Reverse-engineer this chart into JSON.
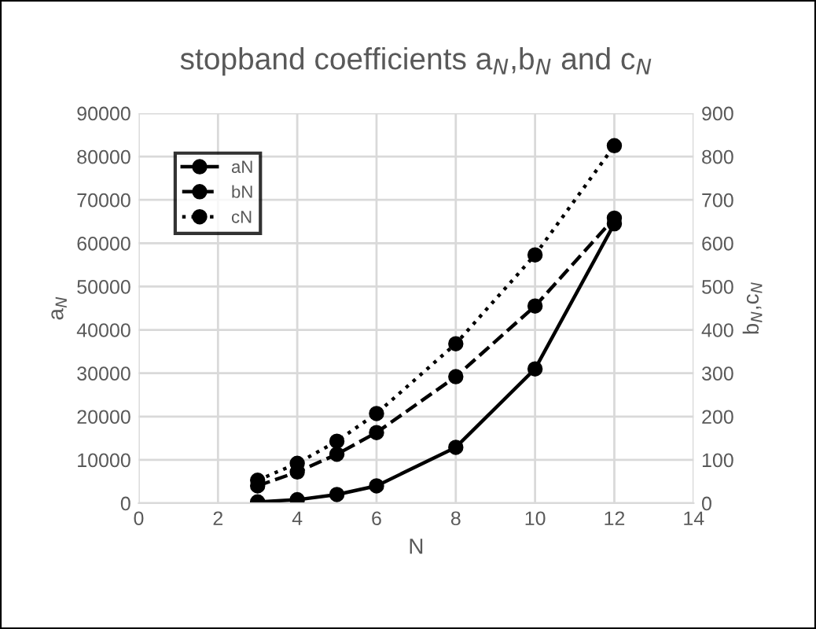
{
  "chart_data": {
    "type": "line",
    "title": "stopband coefficients a$_{N}$,b$_{N}$ and c$_{N}$",
    "xlabel": "N",
    "ylabel": "a$_{N}$",
    "y2label": "b$_{N}$,c$_{N}$",
    "x": [
      3,
      4,
      5,
      6,
      8,
      10,
      12
    ],
    "series": [
      {
        "name": "aN",
        "color": "#000000",
        "line_style": "solid",
        "values": [
          300,
          800,
          2000,
          4000,
          12900,
          31000,
          64500
        ]
      },
      {
        "name": "bN",
        "color": "#000000",
        "line_style": "dashed",
        "axis": "y2",
        "values": [
          40,
          72,
          113,
          163,
          292,
          455,
          658
        ]
      },
      {
        "name": "cN",
        "color": "#000000",
        "line_style": "dotted",
        "axis": "y2",
        "values": [
          53,
          92,
          143,
          207,
          368,
          573,
          825
        ]
      }
    ],
    "xlim": [
      0,
      14
    ],
    "xticks": [
      0,
      2,
      4,
      6,
      8,
      10,
      12,
      14
    ],
    "ylim": [
      0,
      90000
    ],
    "yticks": [
      0,
      10000,
      20000,
      30000,
      40000,
      50000,
      60000,
      70000,
      80000,
      90000
    ],
    "y2lim": [
      0,
      900
    ],
    "y2ticks": [
      0,
      100,
      200,
      300,
      400,
      500,
      600,
      700,
      800,
      900
    ],
    "grid": true,
    "legend": "top left",
    "marker": "circle"
  }
}
